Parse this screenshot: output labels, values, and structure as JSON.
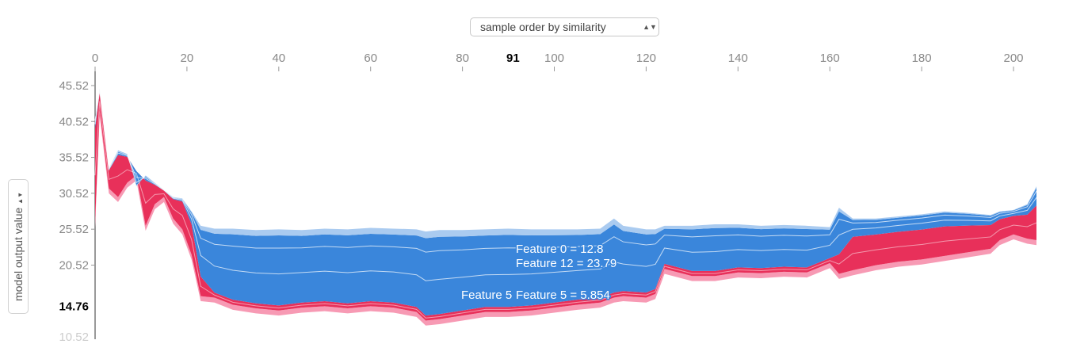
{
  "controls": {
    "x_order_select": "sample order by similarity",
    "y_axis_select": "model output value",
    "select_arrows": "▲▼"
  },
  "colors": {
    "positive": "#e8305a",
    "positive_light": "#f79ab4",
    "negative": "#3a86db",
    "negative_light": "#aacbf0",
    "axis_text": "#888888",
    "highlight_text": "#000000"
  },
  "chart_data": {
    "type": "area",
    "title": "",
    "xlabel": "",
    "ylabel": "model output value",
    "xlim": [
      0,
      205
    ],
    "ylim": [
      10.2,
      47.5
    ],
    "x_ticks": [
      "0",
      "20",
      "40",
      "60",
      "80",
      "100",
      "120",
      "140",
      "160",
      "180",
      "200"
    ],
    "x_highlight": "91",
    "y_ticks": [
      "45.52",
      "40.52",
      "35.52",
      "30.52",
      "25.52",
      "20.52"
    ],
    "y_highlight": "14.76",
    "y_partial_tick": "10.52",
    "x": [
      0,
      1,
      3,
      5,
      7,
      9,
      11,
      13,
      15,
      17,
      19,
      21,
      23,
      26,
      30,
      35,
      40,
      45,
      50,
      55,
      60,
      65,
      70,
      72,
      75,
      80,
      85,
      90,
      95,
      100,
      105,
      110,
      113,
      115,
      120,
      122,
      124,
      130,
      135,
      140,
      145,
      150,
      155,
      160,
      162,
      165,
      170,
      175,
      180,
      185,
      190,
      195,
      197,
      200,
      203,
      205
    ],
    "series": [
      {
        "values": [
          26.5,
          42.0,
          31.2,
          30.0,
          32.0,
          33.0,
          26.0,
          29.0,
          30.0,
          27.0,
          25.5,
          22.0,
          16.2,
          16.0,
          15.0,
          14.5,
          14.2,
          14.6,
          14.8,
          14.5,
          14.8,
          14.6,
          14.0,
          12.8,
          13.0,
          13.5,
          14.0,
          14.0,
          14.2,
          14.6,
          15.0,
          15.3,
          16.0,
          16.2,
          16.0,
          16.5,
          20.0,
          19.0,
          19.0,
          19.5,
          19.4,
          19.6,
          19.5,
          20.8,
          19.3,
          19.8,
          20.5,
          21.0,
          21.3,
          21.8,
          22.3,
          22.8,
          24.0,
          24.8,
          24.2,
          24.0
        ],
        "top_values": [
          41.0,
          45.0,
          34.0,
          36.5,
          36.0,
          31.5,
          33.0,
          32.0,
          31.0,
          30.0,
          29.8,
          28.0,
          26.0,
          25.6,
          25.6,
          25.4,
          25.5,
          25.4,
          25.6,
          25.5,
          25.7,
          25.6,
          25.5,
          25.2,
          25.4,
          25.4,
          25.5,
          25.6,
          25.5,
          25.5,
          25.5,
          25.6,
          27.0,
          26.0,
          25.5,
          25.5,
          26.0,
          26.0,
          26.2,
          26.2,
          26.0,
          26.1,
          26.0,
          25.8,
          28.5,
          27.0,
          27.0,
          27.3,
          27.6,
          28.0,
          27.8,
          27.5,
          28.0,
          28.2,
          29.0,
          31.5
        ]
      }
    ],
    "annotations": [
      "Feature 0 = 12.8",
      "Feature 12 = 23.79",
      "Feature 5",
      "Feature 5 = 5.854"
    ]
  }
}
